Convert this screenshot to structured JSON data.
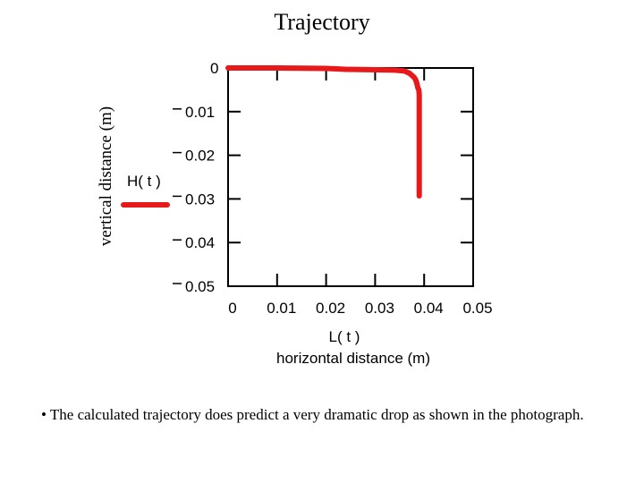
{
  "slide": {
    "title": "Trajectory",
    "bullet_glyph": "•",
    "caption": "The calculated trajectory does predict a very dramatic drop as shown in the photograph."
  },
  "chart_data": {
    "type": "line",
    "title": "Trajectory",
    "xlabel": "horizontal distance (m)",
    "xvar_label": "L( t )",
    "ylabel": "vertical distance (m)",
    "legend_label": "H( t )",
    "legend_placement": "left",
    "line_color": "#e8191b",
    "xlim": [
      0,
      0.05
    ],
    "ylim": [
      -0.05,
      0
    ],
    "x_ticks": [
      "0",
      "0.01",
      "0.02",
      "0.03",
      "0.04",
      "0.05"
    ],
    "y_ticks": [
      "0",
      "- 0.01",
      "- 0.02",
      "- 0.03",
      "- 0.04",
      "- 0.05"
    ],
    "y_tick_values": [
      0,
      -0.01,
      -0.02,
      -0.03,
      -0.04,
      -0.05
    ],
    "x_tick_values": [
      0,
      0.01,
      0.02,
      0.03,
      0.04,
      0.05
    ],
    "grid": false,
    "series": [
      {
        "name": "H( t )",
        "x": [
          0,
          0.01,
          0.02,
          0.024,
          0.03,
          0.034,
          0.036,
          0.037,
          0.0375,
          0.038,
          0.0383,
          0.0385,
          0.0387,
          0.0389,
          0.039,
          0.039,
          0.039
        ],
        "y": [
          0,
          0,
          -0.0001,
          -0.0003,
          -0.0004,
          -0.0005,
          -0.0007,
          -0.0012,
          -0.0017,
          -0.0022,
          -0.0028,
          -0.0035,
          -0.0045,
          -0.005,
          -0.006,
          -0.015,
          -0.0293
        ]
      }
    ]
  }
}
